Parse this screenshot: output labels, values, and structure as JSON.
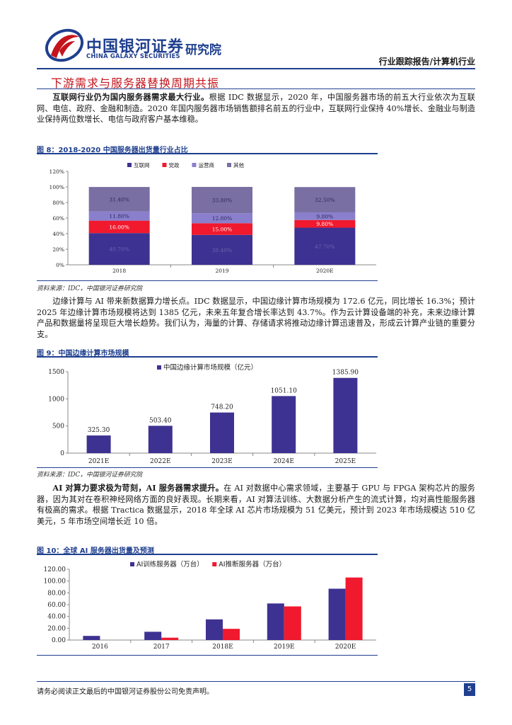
{
  "header": {
    "logo_cn": "中国银河证券",
    "logo_en": "CHINA GALAXY SECURITIES",
    "institute": "研究院",
    "report_type": "行业跟踪报告/计算机行业",
    "logo_icon": "galaxy-logo-icon",
    "brand_color": "#1f3f8f",
    "accent_color": "#c4141c"
  },
  "section_title": "下游需求与服务器替换周期共振",
  "para1": {
    "bold": "互联网行业仍为国内服务器需求最大行业。",
    "text": "根据 IDC 数据显示，2020 年，中国服务器市场的前五大行业依次为互联网、电信、政府、金融和制造。2020 年国内服务器市场销售额排名前五的行业中，互联网行业保持 40%增长、金融业与制造业保持两位数增长、电信与政府客户基本维稳。"
  },
  "fig8": {
    "title": "图 8：2018-2020 中国服务器出货量行业占比",
    "source": "资料来源：IDC，中国银河证券研究院"
  },
  "para2": {
    "text": "边缘计算与 AI 带来新数据算力增长点。IDC 数据显示，中国边缘计算市场规模为 172.6 亿元，同比增长 16.3%；预计 2025 年边缘计算市场规模将达到 1385 亿元，未来五年复合增长率达到 43.7%。作为云计算设备端的补充，未来边缘计算产品和数据量将呈现巨大增长趋势。我们认为，海量的计算、存储请求将推动边缘计算迅速普及，形成云计算产业链的重要分支。"
  },
  "fig9": {
    "title": "图 9：中国边缘计算市场规模",
    "source": "资料来源：IDC，中国银河证券研究院"
  },
  "para3": {
    "bold": "AI 对算力要求极为苛刻，AI 服务器需求提升。",
    "text": "在 AI 对数据中心需求领域，主要基于 GPU 与 FPGA 架构芯片的服务器，因为其对在卷积神经网络方面的良好表现。长期来看，AI 对算法训练、大数据分析产生的流式计算，均对高性能服务器有极高的需求。根据 Tractica 数据显示，2018 年全球 AI 芯片市场规模为 51 亿美元，预计到 2023 年市场规模达 510 亿美元，5 年市场空间增长近 10 倍。"
  },
  "fig10": {
    "title": "图 10：全球 AI 服务器出货量及预测"
  },
  "footer": {
    "disclaimer": "请务必阅读正文最后的中国银河证券股份公司免责声明。",
    "page": "5"
  },
  "chart_data": [
    {
      "type": "bar",
      "stacked": true,
      "categories": [
        "2018",
        "2019",
        "2020E"
      ],
      "series": [
        {
          "name": "互联网",
          "values": [
            40.7,
            38.4,
            47.7
          ],
          "labels": [
            "40.70%",
            "38.40%",
            "47.70%"
          ],
          "color": "#3d3291"
        },
        {
          "name": "党政",
          "values": [
            16.0,
            15.0,
            9.8
          ],
          "labels": [
            "16.00%",
            "15.00%",
            "9.80%"
          ],
          "color": "#f0192e"
        },
        {
          "name": "运营商",
          "values": [
            11.8,
            12.8,
            9.8
          ],
          "labels": [
            "11.80%",
            "12.80%",
            "9.80%"
          ],
          "color": "#8a7fcc"
        },
        {
          "name": "其他",
          "values": [
            31.4,
            33.8,
            32.5
          ],
          "labels": [
            "31.40%",
            "33.80%",
            "32.50%"
          ],
          "color": "#7a6fa3"
        }
      ],
      "yticks": [
        "0%",
        "20%",
        "40%",
        "60%",
        "80%",
        "100%",
        "120%"
      ],
      "ylim": [
        0,
        120
      ],
      "legend": "top",
      "grid": false
    },
    {
      "type": "bar",
      "categories": [
        "2021E",
        "2022E",
        "2023E",
        "2024E",
        "2025E"
      ],
      "series": [
        {
          "name": "中国边缘计算市场规模（亿元）",
          "values": [
            325.3,
            503.4,
            748.2,
            1051.1,
            1385.9
          ],
          "labels": [
            "325.30",
            "503.40",
            "748.20",
            "1051.10",
            "1385.90"
          ],
          "color": "#3d3291"
        }
      ],
      "yticks": [
        "0",
        "500",
        "1000",
        "1500"
      ],
      "ylim": [
        0,
        1500
      ],
      "legend": "top",
      "grid": false
    },
    {
      "type": "bar",
      "categories": [
        "2016",
        "2017",
        "2018E",
        "2019E",
        "2020E"
      ],
      "series": [
        {
          "name": "AI训练服务器（万台）",
          "values": [
            7,
            14,
            35,
            62,
            87
          ],
          "color": "#3d3291"
        },
        {
          "name": "AI推断服务器（万台）",
          "values": [
            0,
            4,
            19,
            57,
            106
          ],
          "color": "#f0192e"
        }
      ],
      "yticks": [
        "0.00",
        "20.00",
        "40.00",
        "60.00",
        "80.00",
        "100.00",
        "120.00"
      ],
      "ylim": [
        0,
        120
      ],
      "legend": "top",
      "grid": false
    }
  ]
}
